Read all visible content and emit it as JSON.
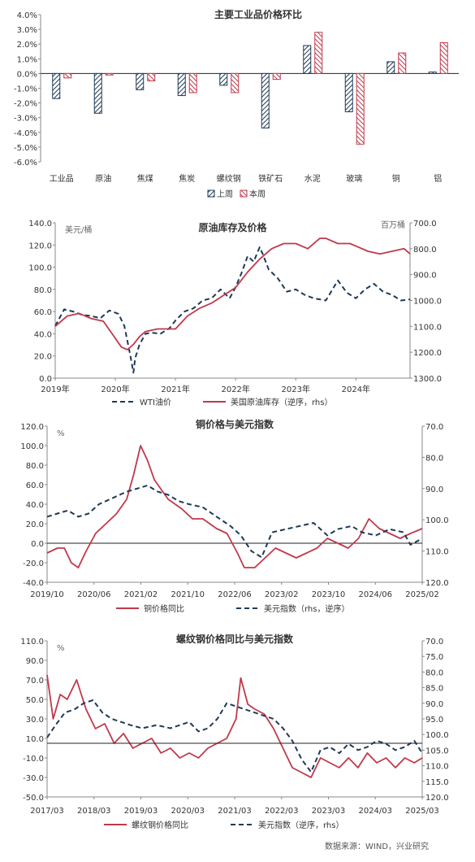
{
  "source": "数据来源：WIND，兴业研究",
  "chart_data": [
    {
      "type": "bar",
      "title": "主要工业品价格环比",
      "categories": [
        "工业品",
        "原油",
        "焦煤",
        "焦炭",
        "螺纹钢",
        "铁矿石",
        "水泥",
        "玻璃",
        "铜",
        "铝"
      ],
      "series": [
        {
          "name": "上周",
          "values": [
            -1.7,
            -2.7,
            -1.1,
            -1.5,
            -0.8,
            -3.7,
            1.9,
            -2.6,
            0.8,
            0.1
          ],
          "color": "#1f3a56",
          "pattern": "hatch-dark"
        },
        {
          "name": "本周",
          "values": [
            -0.3,
            -0.1,
            -0.5,
            -1.3,
            -1.3,
            -0.4,
            2.8,
            -4.8,
            1.4,
            2.1
          ],
          "color": "#c0394b",
          "pattern": "hatch-red"
        }
      ],
      "yticks": [
        "-6.0%",
        "-5.0%",
        "-4.0%",
        "-3.0%",
        "-2.0%",
        "-1.0%",
        "0.0%",
        "1.0%",
        "2.0%",
        "3.0%",
        "4.0%"
      ],
      "ylim": [
        -6,
        4
      ]
    },
    {
      "type": "line",
      "title": "原油库存及价格",
      "ylabel_left": "美元/桶",
      "ylabel_right": "百万桶",
      "xlabels": [
        "2019年",
        "2020年",
        "2021年",
        "2022年",
        "2023年",
        "2024年"
      ],
      "x_range": [
        2019.0,
        2024.9
      ],
      "left_ticks": [
        "0.0",
        "20.0",
        "40.0",
        "60.0",
        "80.0",
        "100.0",
        "120.0",
        "140.0"
      ],
      "left_lim": [
        0,
        140
      ],
      "right_ticks": [
        "700.0",
        "800.0",
        "900.0",
        "1000.0",
        "1100.0",
        "1200.0",
        "1300.0"
      ],
      "right_lim": [
        700,
        1300
      ],
      "right_inverted": true,
      "series": [
        {
          "name": "WTI油价",
          "axis": "left",
          "style": "dashed",
          "color": "#1f3a56",
          "x": [
            2019.0,
            2019.15,
            2019.3,
            2019.45,
            2019.6,
            2019.75,
            2019.9,
            2020.05,
            2020.15,
            2020.25,
            2020.3,
            2020.33,
            2020.4,
            2020.5,
            2020.6,
            2020.75,
            2020.9,
            2021.0,
            2021.15,
            2021.3,
            2021.45,
            2021.6,
            2021.75,
            2021.9,
            2022.0,
            2022.1,
            2022.2,
            2022.3,
            2022.4,
            2022.45,
            2022.55,
            2022.7,
            2022.85,
            2023.0,
            2023.15,
            2023.3,
            2023.5,
            2023.7,
            2023.85,
            2024.0,
            2024.15,
            2024.3,
            2024.45,
            2024.6,
            2024.75,
            2024.9
          ],
          "y": [
            47,
            62,
            60,
            57,
            56,
            54,
            61,
            58,
            47,
            20,
            5,
            18,
            30,
            40,
            41,
            40,
            45,
            52,
            60,
            63,
            70,
            72,
            80,
            72,
            82,
            95,
            110,
            105,
            118,
            112,
            98,
            90,
            78,
            80,
            75,
            72,
            70,
            88,
            77,
            72,
            80,
            85,
            78,
            75,
            70,
            71
          ]
        },
        {
          "name": "美国原油库存（逆序，rhs）",
          "axis": "right",
          "style": "solid",
          "color": "#c0394b",
          "x": [
            2019.0,
            2019.2,
            2019.4,
            2019.6,
            2019.8,
            2019.95,
            2020.1,
            2020.2,
            2020.3,
            2020.4,
            2020.5,
            2020.7,
            2020.9,
            2021.0,
            2021.2,
            2021.4,
            2021.6,
            2021.8,
            2022.0,
            2022.2,
            2022.4,
            2022.6,
            2022.8,
            2023.0,
            2023.2,
            2023.4,
            2023.5,
            2023.7,
            2023.9,
            2024.0,
            2024.2,
            2024.4,
            2024.6,
            2024.8,
            2024.9
          ],
          "y": [
            1100,
            1060,
            1050,
            1070,
            1080,
            1130,
            1180,
            1190,
            1170,
            1140,
            1120,
            1110,
            1110,
            1110,
            1060,
            1030,
            1010,
            980,
            950,
            890,
            840,
            800,
            780,
            780,
            800,
            760,
            760,
            780,
            780,
            790,
            810,
            820,
            810,
            800,
            820
          ]
        }
      ]
    },
    {
      "type": "line",
      "title": "铜价格与美元指数",
      "ylabel_left": "%",
      "xlabels": [
        "2019/10",
        "2020/06",
        "2021/02",
        "2021/10",
        "2022/06",
        "2023/02",
        "2023/10",
        "2024/06",
        "2025/02"
      ],
      "x_range": [
        2019.75,
        2025.17
      ],
      "left_ticks": [
        "-40.0",
        "-20.0",
        "0.0",
        "20.0",
        "40.0",
        "60.0",
        "80.0",
        "100.0",
        "120.0"
      ],
      "left_lim": [
        -40,
        120
      ],
      "right_ticks": [
        "70.0",
        "80.0",
        "90.0",
        "100.0",
        "110.0",
        "120.0"
      ],
      "right_lim": [
        70,
        120
      ],
      "right_inverted": true,
      "series": [
        {
          "name": "铜价格同比",
          "axis": "left",
          "style": "solid",
          "color": "#c0394b",
          "x": [
            2019.75,
            2019.9,
            2020.0,
            2020.1,
            2020.2,
            2020.3,
            2020.45,
            2020.6,
            2020.75,
            2020.9,
            2021.0,
            2021.1,
            2021.2,
            2021.3,
            2021.4,
            2021.5,
            2021.6,
            2021.7,
            2021.85,
            2022.0,
            2022.2,
            2022.35,
            2022.5,
            2022.6,
            2022.75,
            2022.9,
            2023.05,
            2023.2,
            2023.35,
            2023.5,
            2023.65,
            2023.8,
            2023.95,
            2024.1,
            2024.25,
            2024.4,
            2024.55,
            2024.7,
            2024.85,
            2025.0,
            2025.17
          ],
          "y": [
            -10,
            -5,
            -5,
            -20,
            -25,
            -10,
            10,
            20,
            30,
            45,
            70,
            100,
            85,
            65,
            55,
            45,
            40,
            35,
            25,
            25,
            15,
            10,
            -10,
            -25,
            -25,
            -15,
            -5,
            -10,
            -15,
            -10,
            -5,
            5,
            0,
            -5,
            5,
            25,
            15,
            10,
            5,
            10,
            15
          ]
        },
        {
          "name": "美元指数（rhs，逆序）",
          "axis": "right",
          "style": "dashed",
          "color": "#1f3a56",
          "x": [
            2019.75,
            2019.9,
            2020.05,
            2020.2,
            2020.35,
            2020.5,
            2020.7,
            2020.9,
            2021.05,
            2021.2,
            2021.35,
            2021.5,
            2021.65,
            2021.8,
            2022.0,
            2022.2,
            2022.4,
            2022.55,
            2022.7,
            2022.85,
            2023.0,
            2023.2,
            2023.4,
            2023.6,
            2023.8,
            2023.95,
            2024.15,
            2024.3,
            2024.5,
            2024.7,
            2024.9,
            2025.0,
            2025.17
          ],
          "y": [
            99,
            98,
            97,
            99,
            98,
            95,
            93,
            91,
            90,
            89,
            91,
            92,
            94,
            95,
            96,
            99,
            102,
            105,
            110,
            112,
            104,
            103,
            102,
            101,
            105,
            103,
            102,
            104,
            105,
            103,
            104,
            108,
            106
          ]
        }
      ]
    },
    {
      "type": "line",
      "title": "螺纹钢价格同比与美元指数",
      "ylabel_left": "%",
      "xlabels": [
        "2017/03",
        "2018/03",
        "2019/03",
        "2020/03",
        "2021/03",
        "2022/03",
        "2023/03",
        "2024/03",
        "2025/03"
      ],
      "x_range": [
        2017.17,
        2025.17
      ],
      "left_ticks": [
        "-50.0",
        "-30.0",
        "-10.0",
        "10.0",
        "30.0",
        "50.0",
        "70.0",
        "90.0",
        "110.0"
      ],
      "left_lim": [
        -50,
        110
      ],
      "right_ticks": [
        "70.0",
        "75.0",
        "80.0",
        "85.0",
        "90.0",
        "95.0",
        "100.0",
        "105.0",
        "110.0",
        "115.0",
        "120.0"
      ],
      "right_lim": [
        70,
        120
      ],
      "right_inverted": true,
      "series": [
        {
          "name": "螺纹钢价格同比",
          "axis": "left",
          "style": "solid",
          "color": "#c0394b",
          "x": [
            2017.17,
            2017.3,
            2017.45,
            2017.6,
            2017.8,
            2018.0,
            2018.2,
            2018.4,
            2018.6,
            2018.8,
            2019.0,
            2019.2,
            2019.4,
            2019.6,
            2019.8,
            2020.0,
            2020.2,
            2020.4,
            2020.6,
            2020.8,
            2021.0,
            2021.2,
            2021.3,
            2021.45,
            2021.6,
            2021.8,
            2022.0,
            2022.2,
            2022.4,
            2022.6,
            2022.8,
            2023.0,
            2023.2,
            2023.4,
            2023.6,
            2023.8,
            2024.0,
            2024.2,
            2024.4,
            2024.6,
            2024.8,
            2025.0,
            2025.17
          ],
          "y": [
            75,
            30,
            55,
            50,
            70,
            40,
            20,
            25,
            5,
            15,
            0,
            5,
            10,
            -5,
            0,
            -10,
            -5,
            -10,
            0,
            5,
            10,
            30,
            72,
            45,
            40,
            35,
            20,
            0,
            -20,
            -25,
            -30,
            -10,
            -15,
            -20,
            -10,
            -20,
            -5,
            -15,
            -10,
            -20,
            -10,
            -15,
            -10
          ]
        },
        {
          "name": "美元指数（逆序，rhs）",
          "axis": "right",
          "style": "dashed",
          "color": "#1f3a56",
          "x": [
            2017.17,
            2017.35,
            2017.55,
            2017.75,
            2017.95,
            2018.15,
            2018.35,
            2018.55,
            2018.75,
            2018.95,
            2019.2,
            2019.5,
            2019.8,
            2020.0,
            2020.2,
            2020.4,
            2020.6,
            2020.8,
            2021.0,
            2021.2,
            2021.4,
            2021.6,
            2021.8,
            2022.0,
            2022.2,
            2022.4,
            2022.6,
            2022.8,
            2023.0,
            2023.2,
            2023.4,
            2023.6,
            2023.8,
            2024.0,
            2024.2,
            2024.4,
            2024.6,
            2024.8,
            2025.0,
            2025.17
          ],
          "y": [
            101,
            97,
            93,
            92,
            90,
            89,
            93,
            95,
            96,
            97,
            98,
            97,
            98,
            97,
            96,
            99,
            98,
            95,
            90,
            91,
            92,
            93,
            94,
            95,
            98,
            102,
            108,
            112,
            105,
            104,
            106,
            103,
            105,
            104,
            102,
            103,
            105,
            104,
            102,
            106
          ]
        }
      ]
    }
  ]
}
